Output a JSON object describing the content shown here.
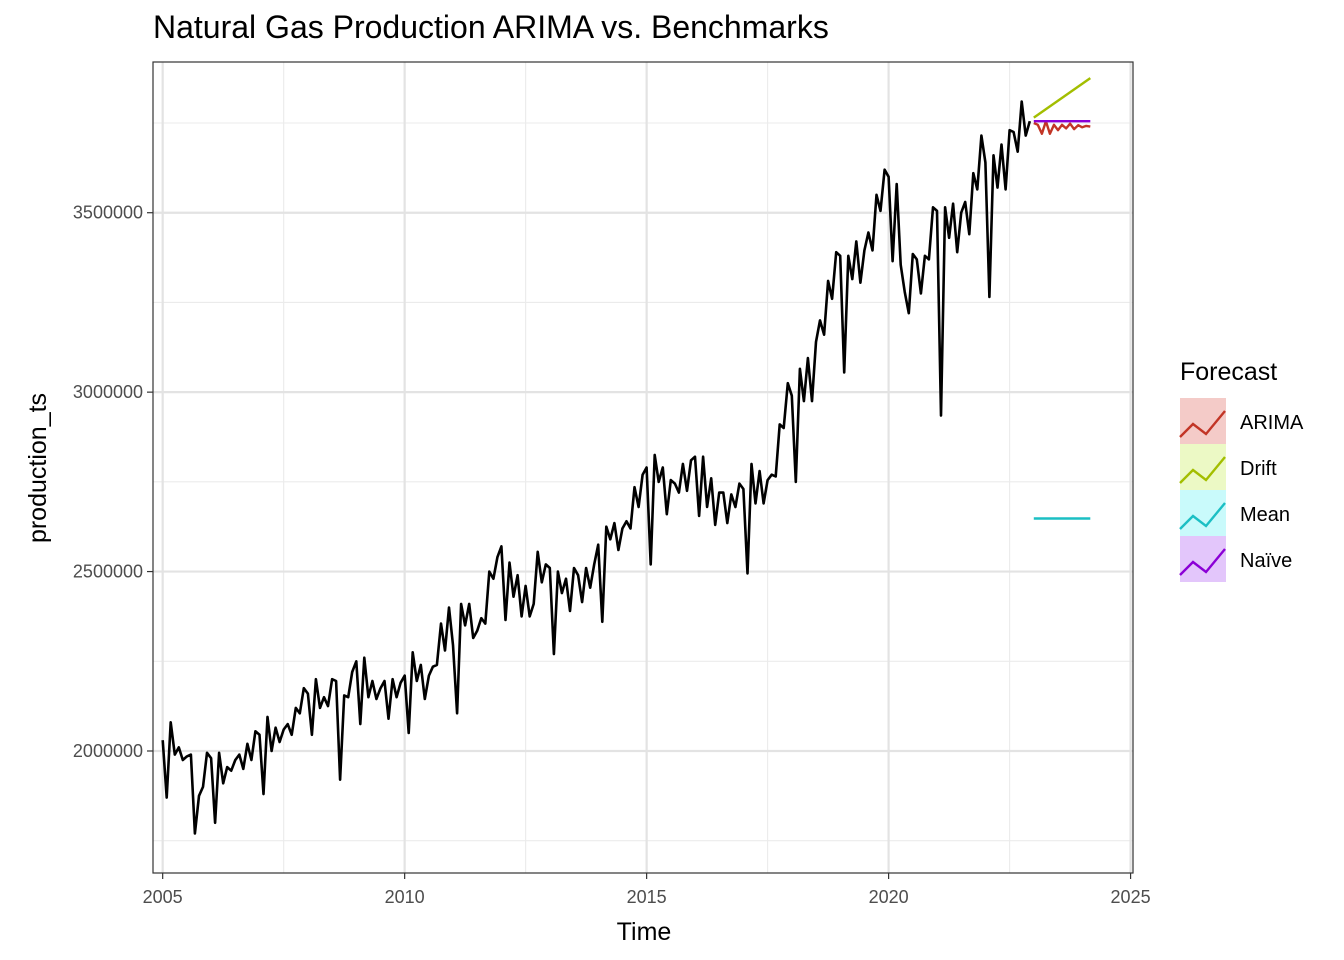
{
  "chart_data": {
    "type": "line",
    "title": "Natural Gas Production ARIMA vs. Benchmarks",
    "xlabel": "Time",
    "ylabel": "production_ts",
    "xlim": [
      2004.8,
      2025.05
    ],
    "ylim": [
      1660000,
      3920000
    ],
    "x_ticks": [
      2005,
      2010,
      2015,
      2020,
      2025
    ],
    "y_ticks": [
      2000000,
      2500000,
      3000000,
      3500000
    ],
    "x_tick_labels": [
      "2005",
      "2010",
      "2015",
      "2020",
      "2025"
    ],
    "y_tick_labels": [
      "2000000",
      "2500000",
      "3000000",
      "3500000"
    ],
    "grid": true,
    "legend_position": "right",
    "legend_title": "Forecast",
    "actual_series": {
      "color": "#000000",
      "start": 2005.0,
      "frequency": 12,
      "values": [
        2030000,
        1870000,
        2080000,
        1990000,
        2010000,
        1975000,
        1985000,
        1990000,
        1770000,
        1875000,
        1900000,
        1995000,
        1980000,
        1800000,
        1995000,
        1910000,
        1955000,
        1945000,
        1975000,
        1990000,
        1950000,
        2020000,
        1975000,
        2055000,
        2045000,
        1880000,
        2095000,
        2000000,
        2065000,
        2025000,
        2060000,
        2075000,
        2045000,
        2120000,
        2105000,
        2175000,
        2160000,
        2045000,
        2200000,
        2120000,
        2150000,
        2125000,
        2200000,
        2195000,
        1920000,
        2155000,
        2150000,
        2220000,
        2250000,
        2075000,
        2260000,
        2150000,
        2195000,
        2145000,
        2175000,
        2195000,
        2090000,
        2200000,
        2150000,
        2190000,
        2210000,
        2050000,
        2275000,
        2195000,
        2240000,
        2145000,
        2210000,
        2235000,
        2240000,
        2355000,
        2280000,
        2400000,
        2295000,
        2105000,
        2410000,
        2350000,
        2410000,
        2315000,
        2335000,
        2370000,
        2355000,
        2500000,
        2480000,
        2540000,
        2570000,
        2365000,
        2525000,
        2430000,
        2490000,
        2375000,
        2460000,
        2375000,
        2410000,
        2555000,
        2470000,
        2520000,
        2510000,
        2270000,
        2500000,
        2440000,
        2480000,
        2390000,
        2510000,
        2490000,
        2415000,
        2510000,
        2455000,
        2520000,
        2575000,
        2360000,
        2625000,
        2590000,
        2635000,
        2560000,
        2620000,
        2640000,
        2620000,
        2735000,
        2680000,
        2770000,
        2790000,
        2520000,
        2825000,
        2750000,
        2790000,
        2660000,
        2755000,
        2745000,
        2720000,
        2800000,
        2725000,
        2810000,
        2820000,
        2655000,
        2820000,
        2680000,
        2760000,
        2630000,
        2720000,
        2720000,
        2635000,
        2715000,
        2680000,
        2745000,
        2730000,
        2495000,
        2800000,
        2690000,
        2780000,
        2690000,
        2755000,
        2770000,
        2765000,
        2910000,
        2900000,
        3025000,
        2990000,
        2750000,
        3065000,
        2975000,
        3095000,
        2975000,
        3140000,
        3200000,
        3160000,
        3310000,
        3260000,
        3390000,
        3380000,
        3055000,
        3380000,
        3315000,
        3420000,
        3305000,
        3395000,
        3445000,
        3395000,
        3550000,
        3505000,
        3620000,
        3600000,
        3365000,
        3580000,
        3355000,
        3280000,
        3220000,
        3385000,
        3370000,
        3275000,
        3380000,
        3370000,
        3515000,
        3505000,
        2935000,
        3515000,
        3430000,
        3525000,
        3390000,
        3500000,
        3530000,
        3440000,
        3610000,
        3565000,
        3715000,
        3640000,
        3265000,
        3660000,
        3570000,
        3690000,
        3565000,
        3730000,
        3725000,
        3670000,
        3810000,
        3715000,
        3755000
      ]
    },
    "series": [
      {
        "name": "ARIMA",
        "color": "#c23526",
        "x": [
          2023.0,
          2023.083,
          2023.167,
          2023.25,
          2023.333,
          2023.417,
          2023.5,
          2023.583,
          2023.667,
          2023.75,
          2023.833,
          2023.917,
          2024.0,
          2024.083,
          2024.167
        ],
        "values": [
          3750000,
          3745000,
          3720000,
          3755000,
          3720000,
          3745000,
          3730000,
          3745000,
          3735000,
          3748000,
          3733000,
          3744000,
          3738000,
          3742000,
          3740000
        ]
      },
      {
        "name": "Drift",
        "color": "#a3be00",
        "x": [
          2023.0,
          2024.167
        ],
        "values": [
          3765000,
          3875000
        ]
      },
      {
        "name": "Mean",
        "color": "#1bbfc4",
        "x": [
          2023.0,
          2024.167
        ],
        "values": [
          2648000,
          2648000
        ]
      },
      {
        "name": "Naïve",
        "color": "#8b00d6",
        "x": [
          2023.0,
          2024.167
        ],
        "values": [
          3755000,
          3755000
        ]
      }
    ],
    "legend_fills": [
      "#f4cbc8",
      "#ecf9c5",
      "#c9fafb",
      "#e3c6fb"
    ]
  }
}
